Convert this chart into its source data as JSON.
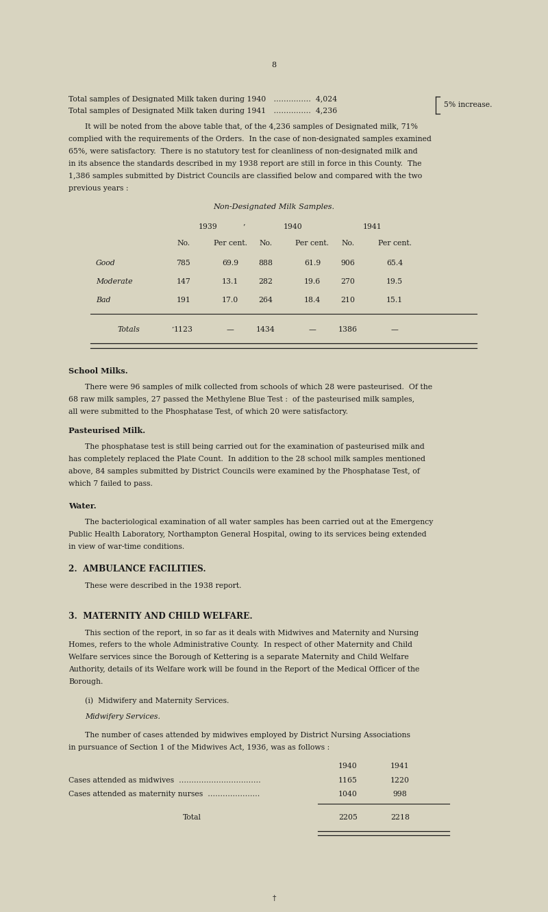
{
  "bg_color": "#d8d4c0",
  "text_color": "#1a1a1a",
  "page_number": "8",
  "table_title": "Non-Designated Milk Samples.",
  "col_headers": [
    "1939",
    "1940",
    "1941"
  ],
  "sub_headers": [
    "No.",
    "Per cent.",
    "No.",
    "Per cent.",
    "No.",
    "Per cent."
  ],
  "rows": [
    [
      "Good",
      "785",
      "69.9",
      "888",
      "61.9",
      "906",
      "65.4"
    ],
    [
      "Moderate",
      "147",
      "13.1",
      "282",
      "19.6",
      "270",
      "19.5"
    ],
    [
      "Bad",
      "191",
      "17.0",
      "264",
      "18.4",
      "210",
      "15.1"
    ]
  ],
  "totals_row": [
    "Totals",
    "1123",
    "—",
    "1434",
    "—",
    "1386",
    "—"
  ],
  "section_school_title": "School Milks.",
  "section_past_title": "Pasteurised Milk.",
  "section_water_title": "Water.",
  "section2_title": "2.  AMBULANCE FACILITIES.",
  "section2_body": "These were described in the 1938 report.",
  "section3_title": "3.  MATERNITY AND CHILD WELFARE.",
  "midwifery_subtitle": "(i)  Midwifery and Maternity Services.",
  "midwifery_subsubtitle": "Midwifery Services.",
  "midwifery_years": [
    "1940",
    "1941"
  ],
  "midwifery_rows": [
    [
      "Cases attended as midwives  ……………………………",
      "1165",
      "1220"
    ],
    [
      "Cases attended as maternity nurses  …………………",
      "1040",
      "998"
    ]
  ],
  "midwifery_total": [
    "Total",
    "2205",
    "2218"
  ],
  "footer_symbol": "†"
}
